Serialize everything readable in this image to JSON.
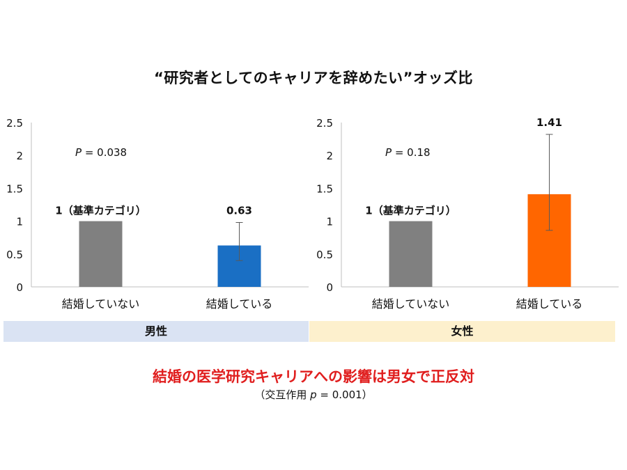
{
  "title": "“研究者としてのキャリアを辞めたい”オッズ比",
  "colors": {
    "bar_reference": "#808080",
    "bar_male_married": "#1a6fc4",
    "bar_female_married": "#ff6600",
    "band_male": "#dae3f3",
    "band_female": "#fdf0cd",
    "conclusion_text": "#e01e1e",
    "axis": "#bfbfbf"
  },
  "chart_data": [
    {
      "type": "bar",
      "group": "男性",
      "categories": [
        "結婚していない",
        "結婚している"
      ],
      "values": [
        1,
        0.63
      ],
      "error_bars": [
        null,
        {
          "low": 0.4,
          "high": 0.98
        }
      ],
      "data_labels": [
        "1（基準カテゴリ）",
        "0.63"
      ],
      "annotation_prefix": "P",
      "annotation_value": " = 0.038",
      "ylim": [
        0,
        2.5
      ],
      "yticks": [
        "0",
        "0.5",
        "1",
        "1.5",
        "2",
        "2.5"
      ],
      "grid": false
    },
    {
      "type": "bar",
      "group": "女性",
      "categories": [
        "結婚していない",
        "結婚している"
      ],
      "values": [
        1,
        1.41
      ],
      "error_bars": [
        null,
        {
          "low": 0.86,
          "high": 2.32
        }
      ],
      "data_labels": [
        "1（基準カテゴリ）",
        "1.41"
      ],
      "annotation_prefix": "P",
      "annotation_value": " = 0.18",
      "ylim": [
        0,
        2.5
      ],
      "yticks": [
        "0",
        "0.5",
        "1",
        "1.5",
        "2",
        "2.5"
      ],
      "grid": false
    }
  ],
  "bands": {
    "male": "男性",
    "female": "女性"
  },
  "conclusion": "結婚の医学研究キャリアへの影響は男女で正反対",
  "interaction": {
    "open": "（交互作用 ",
    "p": "p",
    "value": " =  0.001）"
  }
}
